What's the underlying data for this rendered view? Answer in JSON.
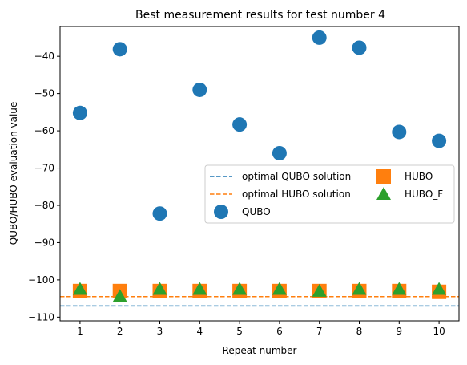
{
  "chart_data": {
    "type": "scatter",
    "title": "Best measurement results for test number 4",
    "xlabel": "Repeat number",
    "ylabel": "QUBO/HUBO evaluation value",
    "xlim": [
      0.5,
      10.5
    ],
    "ylim": [
      -111,
      -32
    ],
    "x_ticks": [
      1,
      2,
      3,
      4,
      5,
      6,
      7,
      8,
      9,
      10
    ],
    "y_ticks": [
      -110,
      -100,
      -90,
      -80,
      -70,
      -60,
      -50,
      -40
    ],
    "y_tick_labels": [
      "−110",
      "−100",
      "−90",
      "−80",
      "−70",
      "−60",
      "−50",
      "−40"
    ],
    "grid": false,
    "legend_position": "center-right",
    "lines": [
      {
        "name": "optimal QUBO solution",
        "y": -107,
        "color": "#1f77b4",
        "style": "dashed"
      },
      {
        "name": "optimal HUBO solution",
        "y": -104.5,
        "color": "#ff7f0e",
        "style": "dashed"
      }
    ],
    "series": [
      {
        "name": "QUBO",
        "marker": "circle",
        "color": "#1f77b4",
        "x": [
          1,
          2,
          3,
          4,
          5,
          6,
          7,
          8,
          9,
          10
        ],
        "y": [
          -55.2,
          -38.1,
          -82.2,
          -49.0,
          -58.3,
          -66.0,
          -35.0,
          -37.7,
          -60.3,
          -62.7
        ]
      },
      {
        "name": "HUBO",
        "marker": "square",
        "color": "#ff7f0e",
        "x": [
          1,
          2,
          3,
          4,
          5,
          6,
          7,
          8,
          9,
          10
        ],
        "y": [
          -103.0,
          -103.0,
          -103.0,
          -103.0,
          -103.0,
          -103.0,
          -103.0,
          -103.0,
          -103.0,
          -103.2
        ]
      },
      {
        "name": "HUBO_F",
        "marker": "triangle",
        "color": "#2ca02c",
        "x": [
          1,
          2,
          3,
          4,
          5,
          6,
          7,
          8,
          9,
          10
        ],
        "y": [
          -102.5,
          -104.4,
          -102.5,
          -102.5,
          -102.5,
          -102.5,
          -103.0,
          -102.5,
          -102.5,
          -102.5
        ]
      }
    ]
  }
}
